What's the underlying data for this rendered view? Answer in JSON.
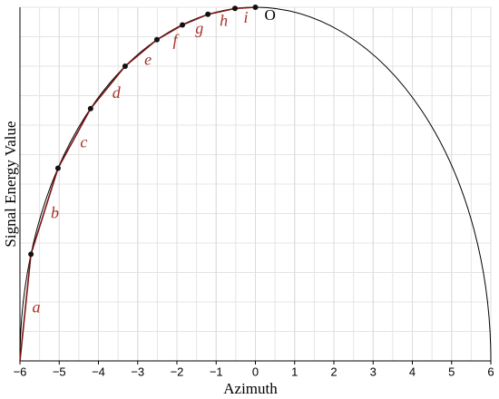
{
  "chart_data": {
    "type": "line",
    "x_label": "Azimuth",
    "y_label": "Signal Energy Value",
    "x": [
      -6,
      -5.72,
      -5.03,
      -4.2,
      -3.32,
      -2.51,
      -1.86,
      -1.21,
      -0.52,
      0
    ],
    "y": [
      0,
      1.81,
      3.27,
      4.28,
      5.0,
      5.45,
      5.7,
      5.88,
      5.98,
      6
    ],
    "segment_labels": [
      "a",
      "b",
      "c",
      "d",
      "e",
      "f",
      "g",
      "h",
      "i"
    ],
    "point_label": "O",
    "color": "#7a1414",
    "curve_color": "#000000",
    "xlim": [
      -6,
      6
    ],
    "ylim": [
      0,
      6
    ],
    "xticks": [
      {
        "value": -6,
        "label": "−6"
      },
      {
        "value": -5,
        "label": "−5"
      },
      {
        "value": -4,
        "label": "−4"
      },
      {
        "value": -3,
        "label": "−3"
      },
      {
        "value": -2,
        "label": "−2"
      },
      {
        "value": -1,
        "label": "−1"
      },
      0,
      1,
      2,
      3,
      4,
      5,
      6
    ],
    "grid": true
  }
}
